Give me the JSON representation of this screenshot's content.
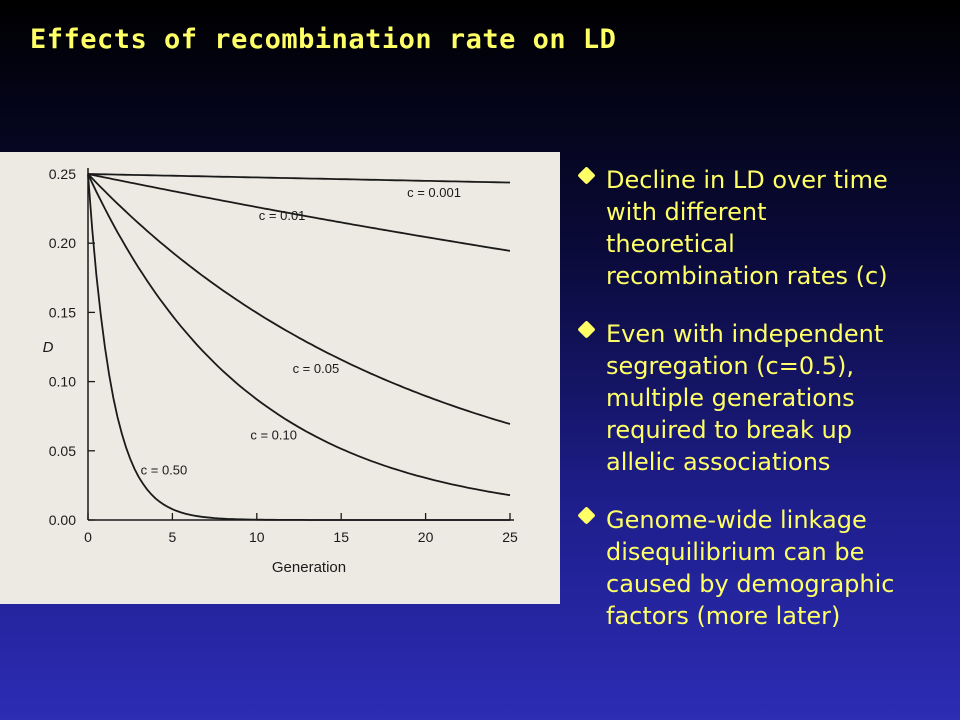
{
  "slide": {
    "title": "Effects of recombination rate on LD",
    "bullets": [
      {
        "text": "Decline in LD over time\nwith different\ntheoretical\nrecombination rates (c)"
      },
      {
        "text": "Even with independent\nsegregation (c=0.5),\nmultiple generations\nrequired to break up\nallelic associations"
      },
      {
        "text": "Genome-wide linkage\ndisequilibrium can be\ncaused by demographic\nfactors (more later)"
      }
    ],
    "colors": {
      "title": "#ffff66",
      "bullet": "#ffff66",
      "background": "#1e1e8c"
    }
  },
  "chart_data": {
    "type": "line",
    "xlabel": "Generation",
    "ylabel": "D",
    "xlim": [
      0,
      25
    ],
    "ylim": [
      0,
      0.25
    ],
    "xticks": [
      "0",
      "5",
      "10",
      "15",
      "20",
      "25"
    ],
    "yticks": [
      "0.00",
      "0.05",
      "0.10",
      "0.15",
      "0.20",
      "0.25"
    ],
    "grid": false,
    "x": [
      0,
      5,
      10,
      15,
      20,
      25
    ],
    "series": [
      {
        "name": "c = 0.001",
        "values": [
          0.25,
          0.249,
          0.248,
          0.246,
          0.245,
          0.244
        ]
      },
      {
        "name": "c = 0.01",
        "values": [
          0.25,
          0.238,
          0.226,
          0.215,
          0.205,
          0.195
        ]
      },
      {
        "name": "c = 0.05",
        "values": [
          0.25,
          0.193,
          0.15,
          0.116,
          0.09,
          0.069
        ]
      },
      {
        "name": "c = 0.10",
        "values": [
          0.25,
          0.148,
          0.087,
          0.051,
          0.03,
          0.018
        ]
      },
      {
        "name": "c = 0.50",
        "values": [
          0.25,
          0.008,
          0.0,
          0.0,
          0.0,
          0.0
        ]
      }
    ]
  }
}
